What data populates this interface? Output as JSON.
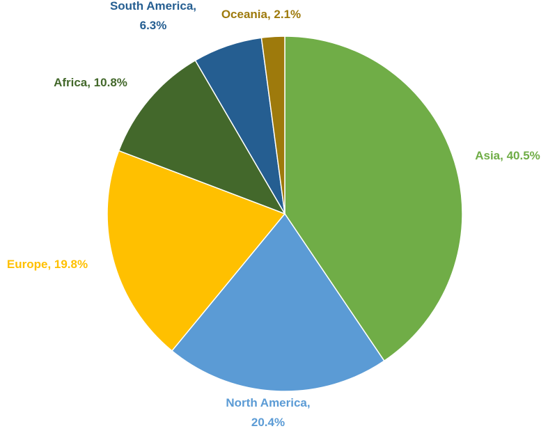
{
  "chart_data": {
    "type": "pie",
    "categories": [
      "Asia",
      "North America",
      "Europe",
      "Africa",
      "South America",
      "Oceania"
    ],
    "values": [
      40.5,
      20.4,
      19.8,
      10.8,
      6.3,
      2.1
    ],
    "value_labels": [
      "Asia, 40.5%",
      "North America,\n20.4%",
      "Europe, 19.8%",
      "Africa, 10.8%",
      "South America,\n6.3%",
      "Oceania, 2.1%"
    ],
    "colors": [
      "#70ad47",
      "#5b9bd5",
      "#ffc000",
      "#43682b",
      "#255e91",
      "#9e7a0c"
    ]
  }
}
